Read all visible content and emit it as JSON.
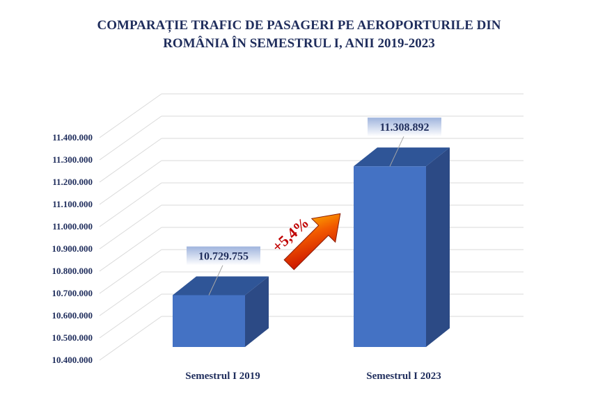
{
  "title_lines": [
    "COMPARAȚIE TRAFIC DE PASAGERI PE AEROPORTURILE DIN",
    "ROMÂNIA ÎN SEMESTRUL I, ANII 2019-2023"
  ],
  "chart_data": {
    "type": "bar",
    "title": "COMPARAȚIE TRAFIC DE PASAGERI PE AEROPORTURILE DIN ROMÂNIA ÎN SEMESTRUL I, ANII 2019-2023",
    "categories": [
      "Semestrul I 2019",
      "Semestrul I 2023"
    ],
    "values": [
      10729755,
      11308892
    ],
    "data_labels": [
      "10.729.755",
      "11.308.892"
    ],
    "ylim": [
      10400000,
      11400000
    ],
    "y_ticks": [
      10400000,
      10500000,
      10600000,
      10700000,
      10800000,
      10900000,
      11000000,
      11100000,
      11200000,
      11300000,
      11400000
    ],
    "y_tick_labels": [
      "10.400.000",
      "10.500.000",
      "10.600.000",
      "10.700.000",
      "10.800.000",
      "10.900.000",
      "11.000.000",
      "11.100.000",
      "11.200.000",
      "11.300.000",
      "11.400.000"
    ],
    "grid": true,
    "style": "3d-bar",
    "annotation": {
      "text": "+5,4%",
      "color": "#c00000"
    },
    "colors": {
      "bar_front": "#4472c4",
      "bar_side": "#2c4a85",
      "bar_top": "#2f5597",
      "text": "#1f2d5c"
    }
  }
}
